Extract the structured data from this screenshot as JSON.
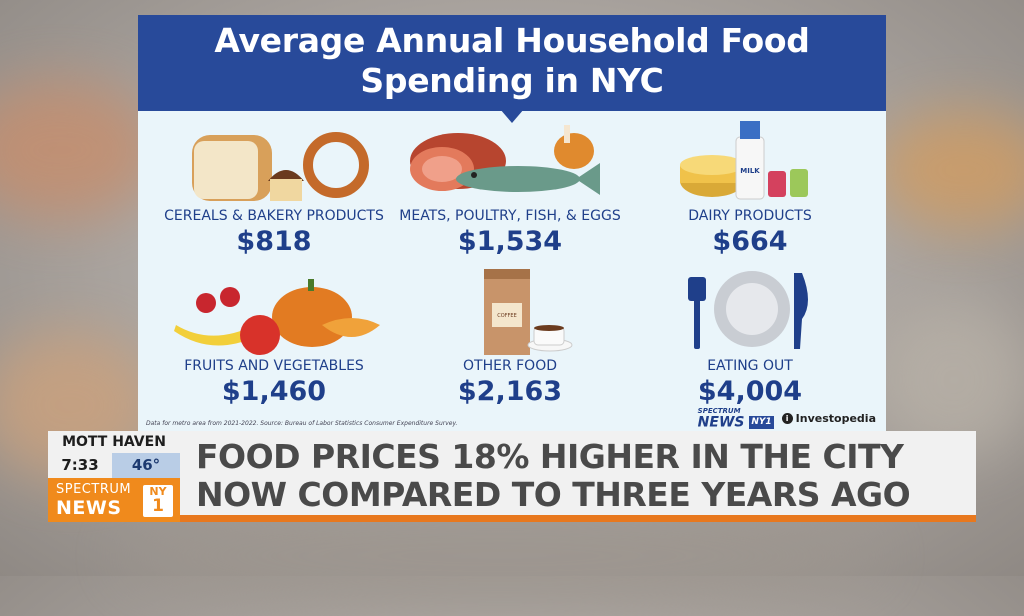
{
  "infographic": {
    "title_line1": "Average Annual Household Food",
    "title_line2": "Spending in NYC",
    "categories": [
      {
        "label": "CEREALS & BAKERY PRODUCTS",
        "amount": "$818"
      },
      {
        "label": "MEATS, POULTRY, FISH, & EGGS",
        "amount": "$1,534"
      },
      {
        "label": "DAIRY PRODUCTS",
        "amount": "$664"
      },
      {
        "label": "FRUITS AND VEGETABLES",
        "amount": "$1,460"
      },
      {
        "label": "OTHER FOOD",
        "amount": "$2,163"
      },
      {
        "label": "EATING OUT",
        "amount": "$4,004"
      }
    ],
    "source_note": "Data for metro area from 2021-2022. Source: Bureau of Labor Statistics Consumer Expenditure Survey.",
    "logo_spectrum": "SPECTRUM",
    "logo_news": "NEWS",
    "logo_ny1": "NY1",
    "logo_investopedia": "Investopedia",
    "milk_label": "MILK",
    "coffee_label": "COFFEE"
  },
  "lower_third": {
    "location": "MOTT HAVEN",
    "time": "7:33",
    "temperature": "46°",
    "headline_line1": "FOOD PRICES 18% HIGHER IN THE CITY",
    "headline_line2": "NOW COMPARED TO THREE YEARS AGO",
    "brand_spectrum": "SPECTRUM",
    "brand_news": "NEWS",
    "brand_ny": "NY",
    "brand_one": "1"
  },
  "colors": {
    "header_blue": "#284a9a",
    "text_blue": "#1f3f8a",
    "brand_orange": "#f08a1c",
    "temp_blue": "#b9cde6"
  }
}
